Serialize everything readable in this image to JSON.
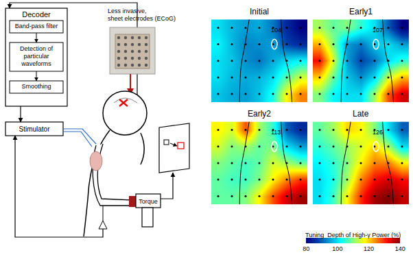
{
  "diagram": {
    "decoder": {
      "title": "Decoder",
      "steps": [
        [
          "Band-pass filter"
        ],
        [
          "Detection of",
          "particular",
          "waveforms"
        ],
        [
          "Smoothing"
        ]
      ]
    },
    "stimulator": "Stimulator",
    "electrode_caption": [
      "Less invasive,",
      "sheet electrodes (ECoG)"
    ],
    "device": "Torque"
  },
  "chart_data": [
    {
      "type": "heatmap",
      "title": "Initial",
      "tick_labels": false,
      "annotations": [
        {
          "text": "104"
        }
      ],
      "z": [
        [
          100,
          97,
          95,
          96,
          92,
          85,
          80
        ],
        [
          102,
          97,
          93,
          94,
          95,
          88,
          85
        ],
        [
          100,
          98,
          94,
          92,
          96,
          100,
          102
        ],
        [
          100,
          97,
          96,
          97,
          100,
          108,
          115
        ],
        [
          98,
          96,
          95,
          98,
          104,
          118,
          125
        ]
      ]
    },
    {
      "type": "heatmap",
      "title": "Early1",
      "tick_labels": false,
      "annotations": [
        {
          "text": "107"
        }
      ],
      "z": [
        [
          112,
          108,
          110,
          105,
          100,
          90,
          80
        ],
        [
          122,
          110,
          95,
          92,
          98,
          100,
          95
        ],
        [
          132,
          115,
          95,
          88,
          92,
          100,
          105
        ],
        [
          120,
          108,
          98,
          94,
          100,
          115,
          122
        ],
        [
          110,
          102,
          100,
          100,
          112,
          128,
          135
        ]
      ]
    },
    {
      "type": "heatmap",
      "title": "Early2",
      "tick_labels": false,
      "annotations": [
        {
          "text": "113"
        }
      ],
      "z": [
        [
          118,
          115,
          128,
          112,
          105,
          90,
          85
        ],
        [
          115,
          110,
          112,
          108,
          110,
          100,
          95
        ],
        [
          110,
          108,
          106,
          108,
          115,
          112,
          108
        ],
        [
          108,
          106,
          106,
          110,
          118,
          125,
          130
        ],
        [
          108,
          108,
          110,
          118,
          128,
          135,
          138
        ]
      ]
    },
    {
      "type": "heatmap",
      "title": "Late",
      "tick_labels": false,
      "annotations": [
        {
          "text": "126"
        }
      ],
      "z": [
        [
          108,
          112,
          120,
          118,
          110,
          100,
          90
        ],
        [
          105,
          108,
          112,
          115,
          120,
          112,
          100
        ],
        [
          102,
          105,
          110,
          118,
          125,
          125,
          118
        ],
        [
          100,
          104,
          112,
          125,
          132,
          135,
          132
        ],
        [
          100,
          106,
          118,
          130,
          138,
          140,
          136
        ]
      ]
    }
  ],
  "colorbar": {
    "title": "Tuning  Depth of High-γ Power (%)",
    "range": [
      80,
      140
    ],
    "ticks": [
      80,
      100,
      120,
      140
    ]
  }
}
